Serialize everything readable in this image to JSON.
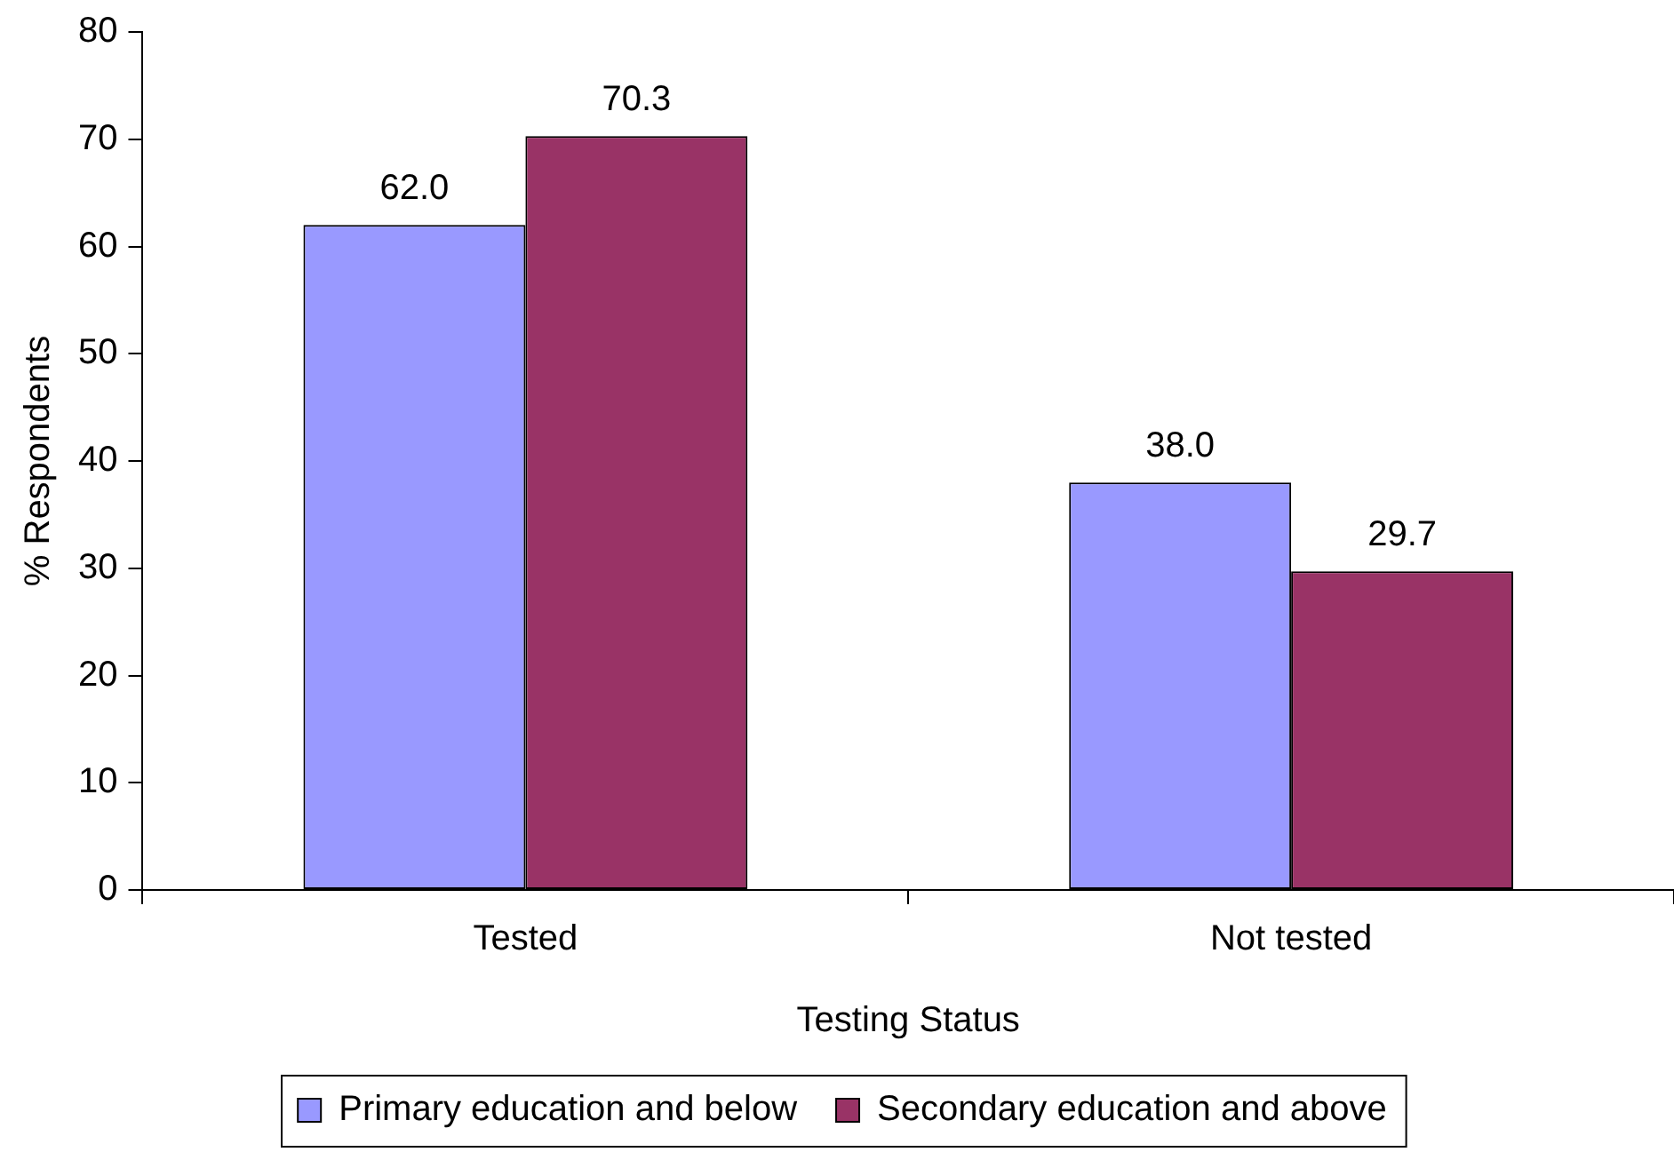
{
  "chart_data": {
    "type": "bar",
    "xlabel": "Testing Status",
    "ylabel": "% Respondents",
    "categories": [
      "Tested",
      "Not tested"
    ],
    "series": [
      {
        "name": "Primary education and below",
        "color": "#9999ff",
        "values": [
          62.0,
          38.0
        ],
        "value_labels": [
          "62.0",
          "38.0"
        ]
      },
      {
        "name": "Secondary education and above",
        "color": "#993366",
        "values": [
          70.3,
          29.7
        ],
        "value_labels": [
          "70.3",
          "29.7"
        ]
      }
    ],
    "ylim": [
      0,
      80
    ],
    "yticks": [
      0,
      10,
      20,
      30,
      40,
      50,
      60,
      70,
      80
    ],
    "grid": false,
    "legend": "bottom"
  }
}
